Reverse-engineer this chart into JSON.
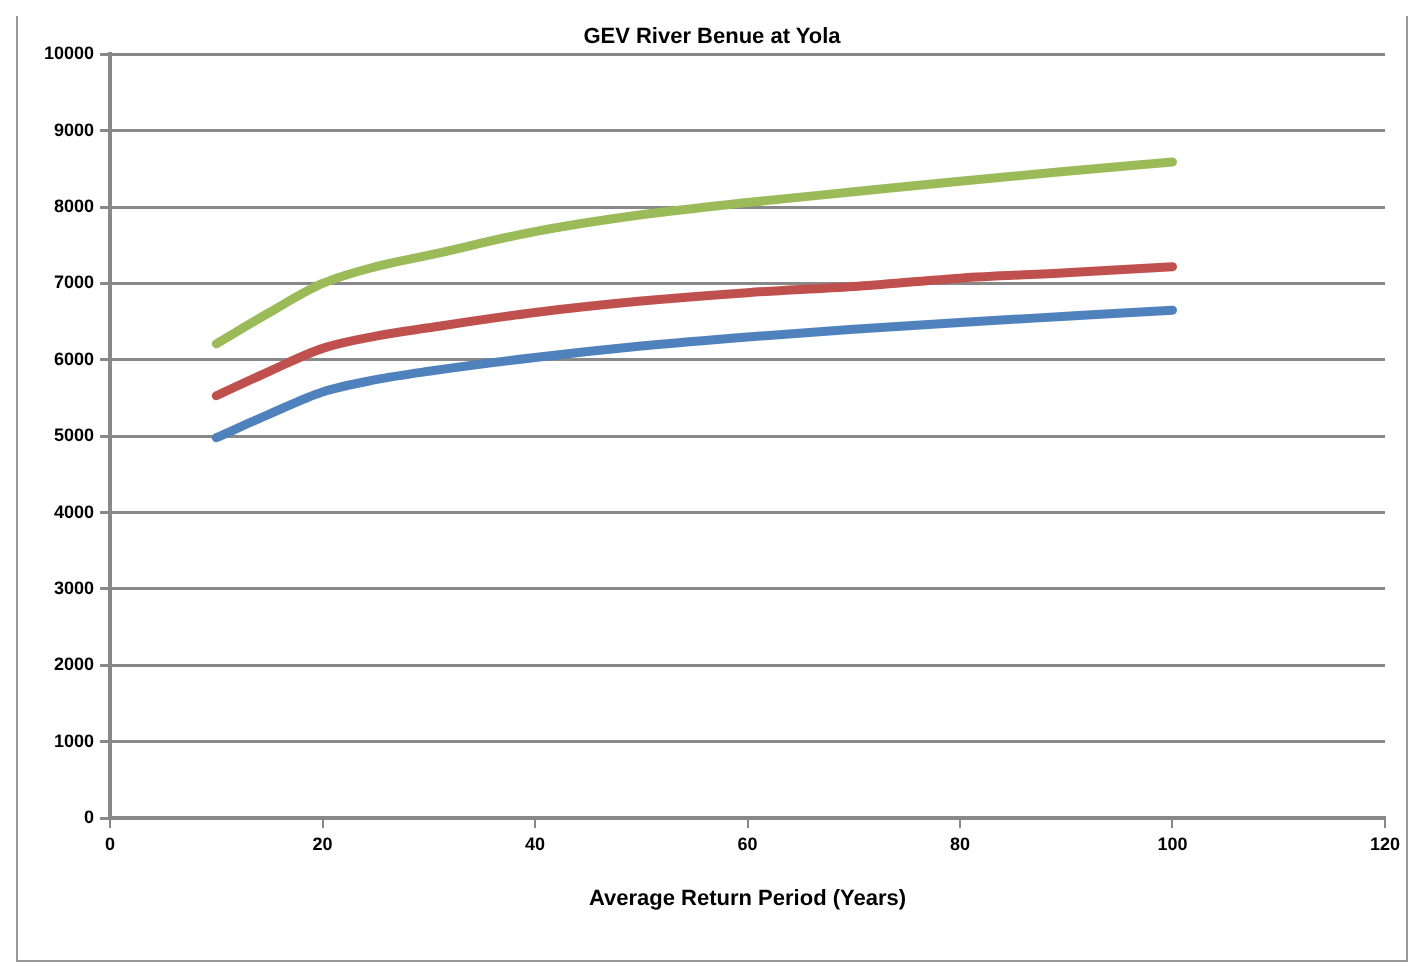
{
  "chart_data": {
    "type": "line",
    "title": "GEV River Benue at Yola",
    "xlabel": "Average Return Period (Years)",
    "x": [
      10,
      15,
      20,
      25,
      30,
      40,
      50,
      60,
      70,
      80,
      90,
      100
    ],
    "series": [
      {
        "color": "#9bbb59",
        "values": [
          6210,
          6620,
          7000,
          7220,
          7370,
          7680,
          7900,
          8060,
          8200,
          8340,
          8470,
          8590
        ]
      },
      {
        "color": "#c0504d",
        "values": [
          5530,
          5850,
          6150,
          6310,
          6420,
          6620,
          6770,
          6880,
          6960,
          7070,
          7140,
          7220
        ]
      },
      {
        "color": "#4f81bd",
        "values": [
          4980,
          5290,
          5580,
          5740,
          5850,
          6030,
          6180,
          6300,
          6400,
          6490,
          6570,
          6650
        ]
      }
    ],
    "xlim": [
      0,
      120
    ],
    "xticks": [
      0,
      20,
      40,
      60,
      80,
      100,
      120
    ],
    "ylim": [
      0,
      10000
    ],
    "yticks": [
      0,
      1000,
      2000,
      3000,
      4000,
      5000,
      6000,
      7000,
      8000,
      9000,
      10000
    ],
    "grid": "y",
    "legend": false,
    "marker": "none",
    "line_style": "solid"
  }
}
